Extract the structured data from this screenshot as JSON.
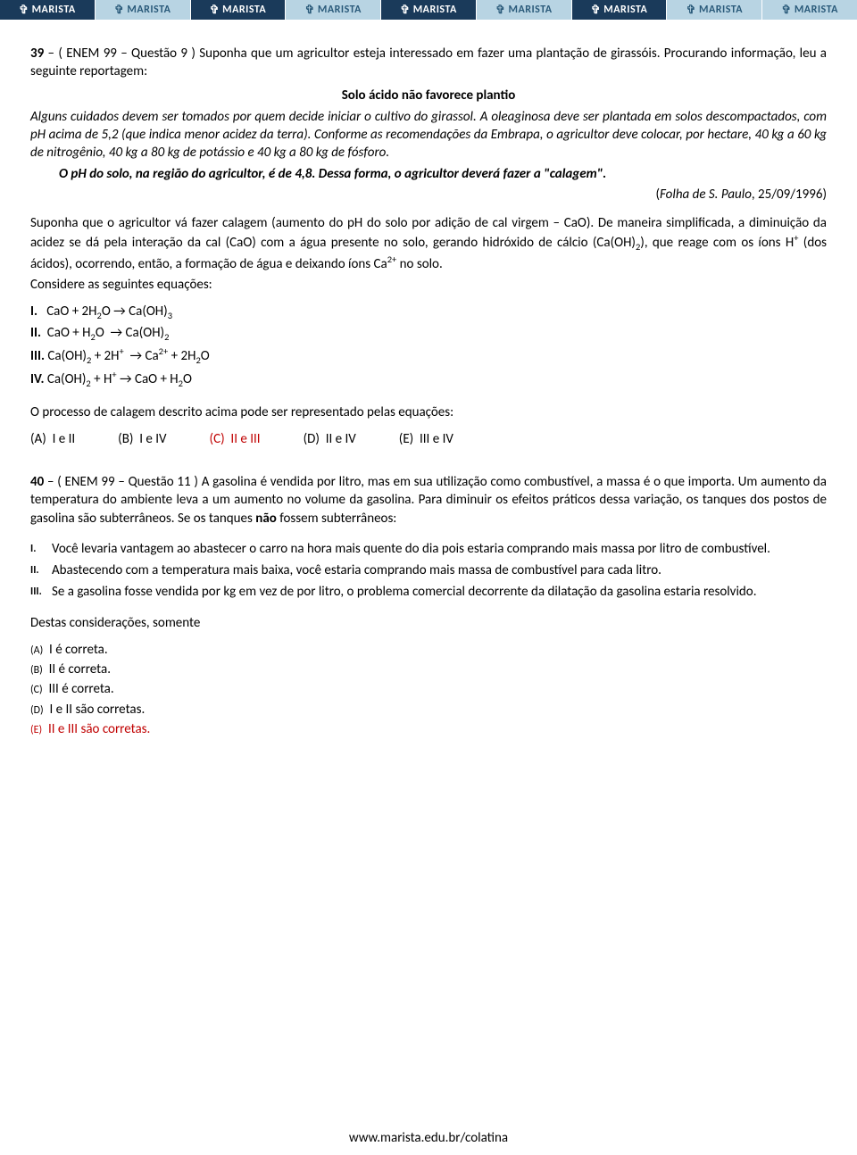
{
  "header": {
    "brand": "MARISTA",
    "cells": 9,
    "dark_indices": [
      0,
      2,
      4,
      6
    ]
  },
  "q39": {
    "number": "39",
    "source": "( ENEM 99 – Questão 9 )",
    "intro": "Suponha que um agricultor esteja interessado em fazer uma plantação de girassóis. Procurando informação, leu a seguinte reportagem:",
    "article_title": "Solo ácido não favorece plantio",
    "article_p1": "Alguns cuidados devem ser tomados por quem decide iniciar o cultivo do girassol. A oleaginosa deve ser plantada em solos descompactados, com pH acima de 5,2 (que indica menor acidez da terra). Conforme as recomendações da Embrapa, o agricultor deve colocar, por hectare, 40 kg a 60 kg de nitrogênio, 40 kg a 80 kg de potássio e 40 kg a 80 kg de fósforo.",
    "article_p2": "O pH do solo, na região do agricultor, é de 4,8. Dessa forma, o agricultor deverá fazer a \"calagem\".",
    "citation_italic": "Folha de S. Paulo",
    "citation_rest": ", 25/09/1996)",
    "body_p1": "Suponha que o agricultor vá fazer calagem (aumento do pH do solo por adição de cal virgem – CaO). De maneira simplificada, a diminuição da acidez se dá pela interação da cal (CaO) com a água presente no solo, gerando hidróxido de cálcio (Ca(OH)₂), que reage com os íons H⁺ (dos ácidos), ocorrendo, então, a formação de água e deixando íons Ca²⁺ no solo.",
    "body_p2": "Considere as seguintes equações:",
    "equations": {
      "I": "CaO + 2H₂O → Ca(OH)₃",
      "II": "CaO + H₂O  → Ca(OH)₂",
      "III": "Ca(OH)₂ + 2H⁺  → Ca²⁺ + 2H₂O",
      "IV": "Ca(OH)₂ + H⁺ → CaO + H₂O"
    },
    "prompt": "O processo de calagem descrito acima pode ser representado pelas equações:",
    "options": {
      "A": "I e II",
      "B": "I e IV",
      "C": "II e III",
      "D": "II e IV",
      "E": "III e IV"
    },
    "correct": "C"
  },
  "q40": {
    "number": "40",
    "source": "( ENEM 99 – Questão 11 )",
    "intro": "A gasolina é vendida por litro, mas em sua utilização como combustível, a massa é o que importa. Um aumento da temperatura do ambiente leva a um aumento no volume da gasolina. Para diminuir os efeitos práticos dessa variação, os tanques dos postos de gasolina são subterrâneos. Se os tanques",
    "intro_bold": "não",
    "intro_tail": " fossem subterrâneos:",
    "statements": {
      "I": "Você levaria vantagem ao abastecer o carro na hora mais quente do dia pois estaria comprando mais massa por litro de combustível.",
      "II": "Abastecendo com a temperatura mais baixa, você estaria comprando mais massa de combustível para cada litro.",
      "III": "Se a gasolina fosse vendida por kg em vez de por litro, o problema comercial decorrente da dilatação da gasolina estaria resolvido."
    },
    "prompt": "Destas considerações, somente",
    "options": {
      "A": "I é correta.",
      "B": "II é correta.",
      "C": "III é correta.",
      "D": "I e II são corretas.",
      "E": "II e III são corretas."
    },
    "correct": "E"
  },
  "footer": {
    "url": "www.marista.edu.br/colatina"
  }
}
